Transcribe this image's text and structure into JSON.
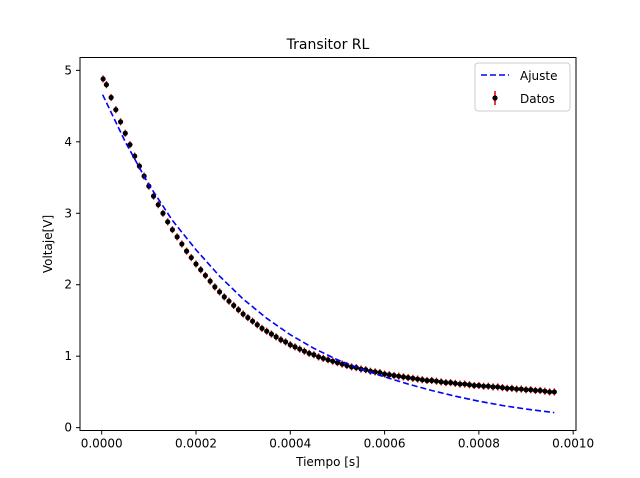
{
  "chart_data": {
    "type": "scatter",
    "title": "Transitor RL",
    "xlabel": "Tiempo [s]",
    "ylabel": "Voltaje[V]",
    "xlim": [
      -4.6e-05,
      0.001006
    ],
    "ylim": [
      -0.04,
      5.18
    ],
    "x_ticks": [
      0,
      0.0002,
      0.0004,
      0.0006,
      0.0008,
      0.001
    ],
    "x_tick_labels": [
      "0.0000",
      "0.0002",
      "0.0004",
      "0.0006",
      "0.0008",
      "0.0010"
    ],
    "y_ticks": [
      0,
      1,
      2,
      3,
      4,
      5
    ],
    "y_tick_labels": [
      "0",
      "1",
      "2",
      "3",
      "4",
      "5"
    ],
    "grid": false,
    "legend_position": "top-right",
    "series": [
      {
        "name": "Ajuste",
        "kind": "line",
        "style": "dashed",
        "color": "#0000ff",
        "x": [
          2e-06,
          5e-05,
          0.0001,
          0.00015,
          0.0002,
          0.00025,
          0.0003,
          0.00035,
          0.0004,
          0.00045,
          0.0005,
          0.00055,
          0.0006,
          0.00065,
          0.0007,
          0.00075,
          0.0008,
          0.00085,
          0.0009,
          0.00096
        ],
        "y": [
          4.66,
          4.0,
          3.4,
          2.9,
          2.49,
          2.12,
          1.8,
          1.53,
          1.3,
          1.11,
          0.95,
          0.82,
          0.71,
          0.61,
          0.52,
          0.44,
          0.37,
          0.31,
          0.26,
          0.21
        ]
      },
      {
        "name": "Datos",
        "kind": "errorbar",
        "marker_color": "#000000",
        "error_color": "#ff0000",
        "y_error": 0.05,
        "x": [
          3e-06,
          1e-05,
          2e-05,
          3e-05,
          4e-05,
          5e-05,
          6e-05,
          7e-05,
          8e-05,
          9e-05,
          0.0001,
          0.00011,
          0.00012,
          0.00013,
          0.00014,
          0.00015,
          0.00016,
          0.00017,
          0.00018,
          0.00019,
          0.0002,
          0.00021,
          0.00022,
          0.00023,
          0.00024,
          0.00025,
          0.00026,
          0.00027,
          0.00028,
          0.00029,
          0.0003,
          0.00031,
          0.00032,
          0.00033,
          0.00034,
          0.00035,
          0.00036,
          0.00037,
          0.00038,
          0.00039,
          0.0004,
          0.00041,
          0.00042,
          0.00043,
          0.00044,
          0.00045,
          0.00046,
          0.00047,
          0.00048,
          0.00049,
          0.0005,
          0.00051,
          0.00052,
          0.00053,
          0.00054,
          0.00055,
          0.00056,
          0.00057,
          0.00058,
          0.00059,
          0.0006,
          0.00061,
          0.00062,
          0.00063,
          0.00064,
          0.00065,
          0.00066,
          0.00067,
          0.00068,
          0.00069,
          0.0007,
          0.00071,
          0.00072,
          0.00073,
          0.00074,
          0.00075,
          0.00076,
          0.00077,
          0.00078,
          0.00079,
          0.0008,
          0.00081,
          0.00082,
          0.00083,
          0.00084,
          0.00085,
          0.00086,
          0.00087,
          0.00088,
          0.00089,
          0.0009,
          0.00091,
          0.00092,
          0.00093,
          0.00094,
          0.00095,
          0.00096
        ],
        "y": [
          4.88,
          4.8,
          4.62,
          4.45,
          4.28,
          4.12,
          3.96,
          3.8,
          3.66,
          3.52,
          3.38,
          3.24,
          3.12,
          3.0,
          2.88,
          2.77,
          2.67,
          2.57,
          2.47,
          2.38,
          2.29,
          2.21,
          2.13,
          2.05,
          1.97,
          1.9,
          1.83,
          1.77,
          1.71,
          1.65,
          1.59,
          1.54,
          1.49,
          1.44,
          1.39,
          1.35,
          1.31,
          1.27,
          1.23,
          1.2,
          1.16,
          1.13,
          1.1,
          1.07,
          1.04,
          1.02,
          0.99,
          0.97,
          0.95,
          0.93,
          0.91,
          0.89,
          0.87,
          0.85,
          0.84,
          0.82,
          0.81,
          0.79,
          0.78,
          0.77,
          0.75,
          0.74,
          0.73,
          0.72,
          0.71,
          0.7,
          0.69,
          0.68,
          0.67,
          0.66,
          0.66,
          0.65,
          0.64,
          0.63,
          0.63,
          0.62,
          0.61,
          0.61,
          0.6,
          0.59,
          0.59,
          0.58,
          0.58,
          0.57,
          0.57,
          0.56,
          0.55,
          0.55,
          0.54,
          0.54,
          0.53,
          0.53,
          0.52,
          0.52,
          0.51,
          0.5,
          0.5
        ]
      }
    ]
  }
}
